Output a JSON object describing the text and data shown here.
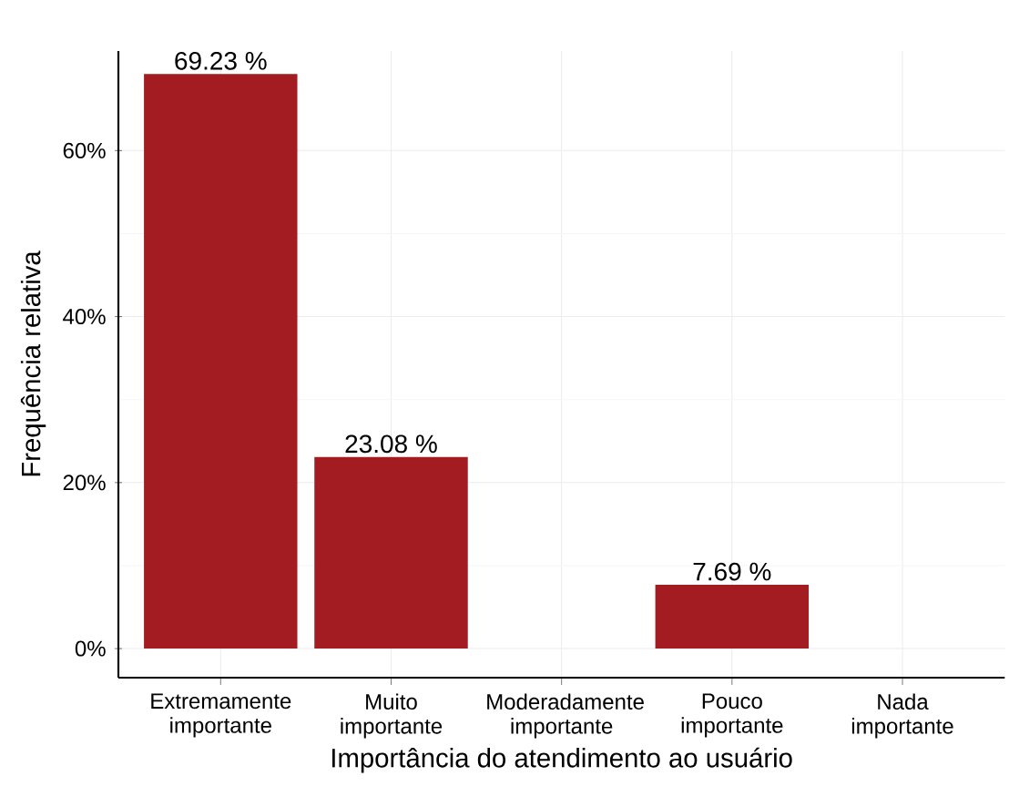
{
  "chart_data": {
    "type": "bar",
    "xlabel": "Importância do atendimento ao usuário",
    "ylabel": "Frequência relativa",
    "categories": [
      "Extremamente importante",
      "Muito importante",
      "Moderadamente importante",
      "Pouco importante",
      "Nada importante"
    ],
    "values": [
      69.23,
      23.08,
      0,
      7.69,
      0
    ],
    "value_labels": [
      "69.23 %",
      "23.08 %",
      null,
      "7.69 %",
      null
    ],
    "color": "#a31c22",
    "ylim": [
      -3.5,
      72
    ],
    "yticks": [
      {
        "value": 0,
        "label": "0%"
      },
      {
        "value": 20,
        "label": "20%"
      },
      {
        "value": 40,
        "label": "40%"
      },
      {
        "value": 60,
        "label": "60%"
      }
    ],
    "grid": true
  }
}
